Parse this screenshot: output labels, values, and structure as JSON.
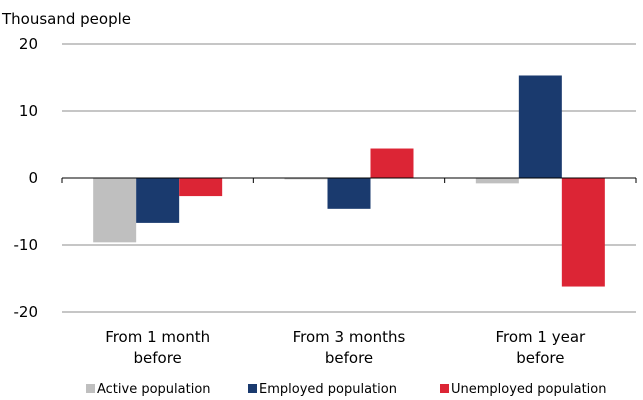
{
  "chart_data": {
    "type": "bar",
    "unit_label": "Thousand people",
    "categories": [
      [
        "From 1 month",
        "before"
      ],
      [
        "From 3 months",
        "before"
      ],
      [
        "From 1 year",
        "before"
      ]
    ],
    "series": [
      {
        "name": "Active population",
        "color": "#bfbfbf",
        "values": [
          -9.6,
          -0.2,
          -0.8
        ]
      },
      {
        "name": "Employed population",
        "color": "#1a3a6e",
        "values": [
          -6.7,
          -4.6,
          15.3
        ]
      },
      {
        "name": "Unemployed population",
        "color": "#dc2535",
        "values": [
          -2.7,
          4.4,
          -16.2
        ]
      }
    ],
    "ylim": [
      -20,
      20
    ],
    "yticks": [
      20,
      10,
      0,
      -10,
      -20
    ],
    "grid": true,
    "legend_position": "bottom"
  }
}
